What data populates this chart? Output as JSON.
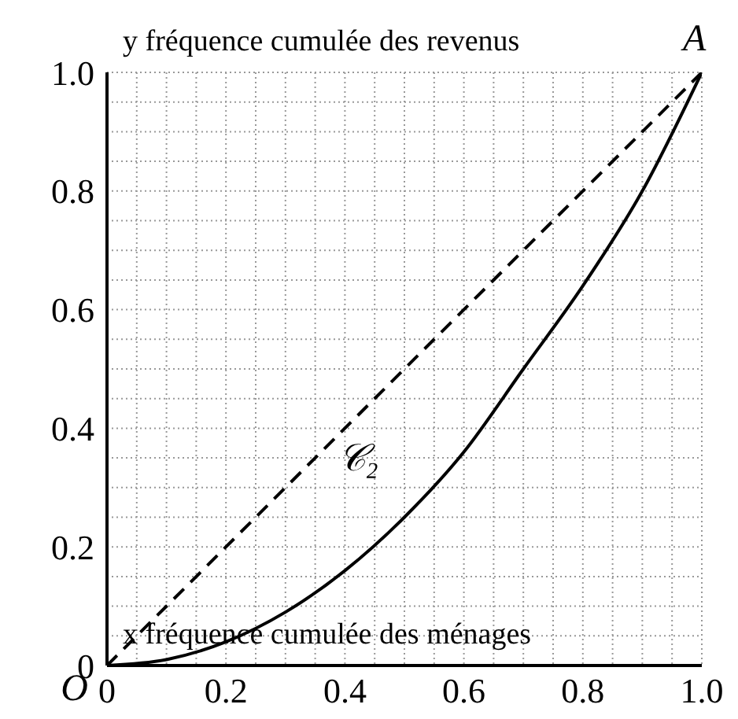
{
  "chart_data": {
    "type": "line",
    "xlabel": "x fréquence cumulée des ménages",
    "ylabel": "y fréquence cumulée des revenus",
    "xlim": [
      0,
      1
    ],
    "ylim": [
      0,
      1
    ],
    "xticks": [
      0,
      {
        "value": 0.05,
        "label": null
      },
      {
        "value": 0.1,
        "label": null
      },
      {
        "value": 0.15,
        "label": null
      },
      0.2,
      {
        "value": 0.25,
        "label": null
      },
      {
        "value": 0.3,
        "label": null
      },
      {
        "value": 0.35,
        "label": null
      },
      0.4,
      {
        "value": 0.45,
        "label": null
      },
      {
        "value": 0.5,
        "label": null
      },
      {
        "value": 0.55,
        "label": null
      },
      0.6,
      {
        "value": 0.65,
        "label": null
      },
      {
        "value": 0.7,
        "label": null
      },
      {
        "value": 0.75,
        "label": null
      },
      0.8,
      {
        "value": 0.85,
        "label": null
      },
      {
        "value": 0.9,
        "label": null
      },
      {
        "value": 0.95,
        "label": null
      },
      {
        "value": 1,
        "label": "1.0"
      }
    ],
    "yticks": [
      0,
      {
        "value": 0.05,
        "label": null
      },
      {
        "value": 0.1,
        "label": null
      },
      {
        "value": 0.15,
        "label": null
      },
      0.2,
      {
        "value": 0.25,
        "label": null
      },
      {
        "value": 0.3,
        "label": null
      },
      {
        "value": 0.35,
        "label": null
      },
      0.4,
      {
        "value": 0.45,
        "label": null
      },
      {
        "value": 0.5,
        "label": null
      },
      {
        "value": 0.55,
        "label": null
      },
      0.6,
      {
        "value": 0.65,
        "label": null
      },
      {
        "value": 0.7,
        "label": null
      },
      {
        "value": 0.75,
        "label": null
      },
      0.8,
      {
        "value": 0.85,
        "label": null
      },
      {
        "value": 0.9,
        "label": null
      },
      {
        "value": 0.95,
        "label": null
      },
      {
        "value": 1,
        "label": "1.0"
      }
    ],
    "grid": true,
    "series": [
      {
        "color": "#000000",
        "line_style": "dashed",
        "x": [
          0,
          1
        ],
        "values": [
          0,
          1
        ]
      },
      {
        "color": "#000000",
        "line_style": "solid",
        "x": [
          0,
          0.1,
          0.2,
          0.3,
          0.4,
          0.5,
          0.6,
          0.7,
          0.8,
          0.9,
          1
        ],
        "values": [
          0,
          0.01,
          0.04,
          0.09,
          0.16,
          0.25,
          0.36,
          0.5,
          0.64,
          0.8,
          1
        ]
      }
    ],
    "annotations": [
      {
        "text": "O",
        "x": 0,
        "y": 0
      },
      {
        "text": "A",
        "x": 1,
        "y": 1
      },
      "𝒞₂"
    ]
  }
}
